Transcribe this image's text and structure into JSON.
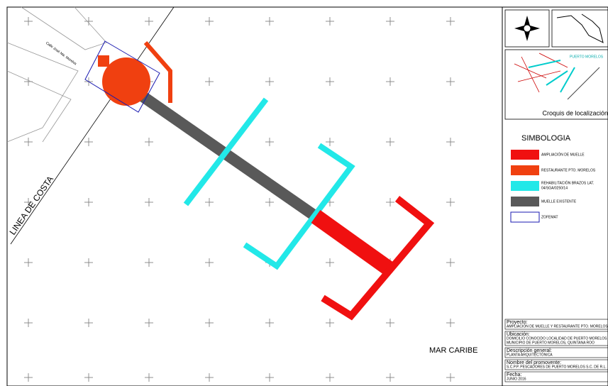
{
  "map": {
    "street": "Calle José Ma. Morelos",
    "coast": "LINEA DE COSTA",
    "sea": "MAR CARIBE"
  },
  "location": {
    "place": "PUERTO MORELOS",
    "caption": "Croquis de localización:"
  },
  "legend": {
    "title": "SIMBOLOGIA",
    "items": [
      "AMPLIACIÓN DE MUELLE",
      "RESTAURANTE PTO. MORELOS",
      "REHABILITACIÓN BRAZOS LAT.",
      "04/SGA/0250/14",
      "MUELLE EXISTENTE",
      "ZOFEMAT"
    ]
  },
  "title_block": {
    "rows": [
      [
        "Proyecto:",
        "AMPLIACIÓN DE MUELLE Y RESTAURANTE PTO. MORELOS"
      ],
      [
        "Ubicación:",
        "DOMICILIO CONOCIDO LOCALIDAD DE PUERTO MORELOS",
        "MUNICIPIO DE PUERTO MORELOS, QUINTANA ROO"
      ],
      [
        "Descripción general:",
        "PLANTA ARQUITECTÓNICA"
      ],
      [
        "Nombre del promovente:",
        "S.C.P.P. PESCADORES DE PUERTO MORELOS S.C. DE R.L."
      ],
      [
        "Fecha:",
        "JUNIO 2016"
      ]
    ]
  }
}
